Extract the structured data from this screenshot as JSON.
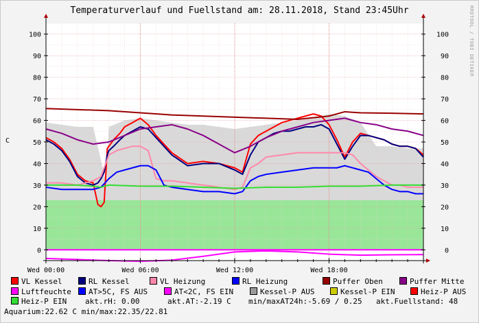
{
  "title": "Temperaturverlauf und Fuellstand am: 28.11.2018, Stand 23:45Uhr",
  "watermark": "RRDTOOL / TOBI OETIKER",
  "chart_data": {
    "type": "line",
    "ylabel": "C",
    "ylim": [
      -5,
      105
    ],
    "yticks": [
      0,
      10,
      20,
      30,
      40,
      50,
      60,
      70,
      80,
      90,
      100
    ],
    "xlim": [
      0,
      24
    ],
    "xticks": [
      {
        "x": 0,
        "label": "Wed 00:00"
      },
      {
        "x": 6,
        "label": "Wed 06:00"
      },
      {
        "x": 12,
        "label": "Wed 12:00"
      },
      {
        "x": 18,
        "label": "Wed 18:00"
      }
    ],
    "grid": true,
    "legend_position": "bottom",
    "series": [
      {
        "name": "VL Kessel",
        "color": "#ff0000",
        "x": [
          0,
          0.5,
          1,
          1.5,
          2,
          2.5,
          3,
          3.3,
          3.5,
          3.7,
          3.9,
          4,
          4.3,
          4.7,
          5,
          5.5,
          6,
          6.5,
          7,
          7.5,
          8,
          9,
          10,
          11,
          12,
          12.5,
          13,
          13.5,
          14,
          14.5,
          15,
          15.5,
          16,
          16.5,
          17,
          17.5,
          18,
          18.5,
          19,
          19.5,
          20,
          20.5,
          21,
          21.5,
          22,
          22.5,
          23,
          23.5,
          24
        ],
        "y": [
          52,
          50,
          47,
          42,
          35,
          32,
          31,
          21,
          20,
          22,
          47,
          48,
          51,
          54,
          57,
          59,
          61,
          58,
          53,
          49,
          45,
          40,
          41,
          40,
          38,
          36,
          49,
          53,
          55,
          57,
          59,
          60,
          61,
          62,
          63,
          62,
          58,
          51,
          43,
          50,
          54,
          53,
          52,
          51,
          49,
          48,
          48,
          47,
          44
        ]
      },
      {
        "name": "RL Kessel",
        "color": "#000080",
        "x": [
          0,
          0.5,
          1,
          1.5,
          2,
          2.5,
          3,
          3.3,
          3.5,
          3.7,
          3.9,
          4,
          4.3,
          4.7,
          5,
          5.5,
          6,
          6.5,
          7,
          7.5,
          8,
          9,
          10,
          11,
          12,
          12.5,
          13,
          13.5,
          14,
          14.5,
          15,
          15.5,
          16,
          16.5,
          17,
          17.5,
          18,
          18.5,
          19,
          19.5,
          20,
          20.5,
          21,
          21.5,
          22,
          22.5,
          23,
          23.5,
          24
        ],
        "y": [
          51,
          49,
          46,
          41,
          34,
          31,
          30,
          31,
          33,
          36,
          44,
          46,
          48,
          51,
          53,
          55,
          57,
          56,
          52,
          48,
          44,
          39,
          40,
          40,
          37,
          35,
          44,
          50,
          52,
          54,
          55,
          55,
          56,
          57,
          57,
          58,
          56,
          49,
          42,
          48,
          53,
          53,
          52,
          51,
          49,
          48,
          48,
          47,
          43
        ]
      },
      {
        "name": "VL Heizung",
        "color": "#ff88aa",
        "x": [
          0,
          1,
          2,
          3,
          3.5,
          4,
          4.5,
          5,
          5.5,
          6,
          6.5,
          7,
          7.5,
          8,
          9,
          10,
          11,
          12,
          12.5,
          13,
          13.5,
          14,
          15,
          16,
          17,
          18,
          18.5,
          19,
          19.5,
          20,
          20.5,
          21,
          21.5,
          22,
          22.5,
          23,
          23.5,
          24
        ],
        "y": [
          31,
          31,
          30,
          32,
          34,
          44,
          46,
          47,
          48,
          48,
          46,
          33,
          32,
          32,
          31,
          30,
          29,
          28,
          29,
          38,
          40,
          43,
          44,
          45,
          45,
          45,
          45,
          45,
          44,
          40,
          37,
          34,
          32,
          30,
          30,
          29,
          29,
          29
        ]
      },
      {
        "name": "RL Heizung",
        "color": "#0000ff",
        "x": [
          0,
          1,
          2,
          3,
          3.5,
          4,
          4.5,
          5,
          5.5,
          6,
          6.5,
          7,
          7.5,
          8,
          9,
          10,
          11,
          12,
          12.5,
          13,
          13.5,
          14,
          15,
          16,
          17,
          18,
          18.5,
          19,
          19.5,
          20,
          20.5,
          21,
          21.5,
          22,
          22.5,
          23,
          23.5,
          24
        ],
        "y": [
          29,
          28,
          28,
          28,
          29,
          33,
          36,
          37,
          38,
          39,
          39,
          37,
          30,
          29,
          28,
          27,
          27,
          26,
          27,
          32,
          34,
          35,
          36,
          37,
          38,
          38,
          38,
          39,
          38,
          37,
          36,
          33,
          30,
          28,
          27,
          27,
          26,
          26
        ]
      },
      {
        "name": "Puffer Oben",
        "color": "#990000",
        "x": [
          0,
          2,
          4,
          6,
          8,
          10,
          12,
          14,
          16,
          18,
          19,
          20,
          22,
          24
        ],
        "y": [
          65.5,
          65,
          64.5,
          63.5,
          62.5,
          62,
          61.5,
          61,
          60.5,
          62,
          64,
          63.5,
          63.3,
          63
        ]
      },
      {
        "name": "Puffer Mitte",
        "color": "#880088",
        "x": [
          0,
          1,
          2,
          3,
          4,
          5,
          6,
          7,
          8,
          9,
          10,
          11,
          12,
          13,
          14,
          15,
          16,
          17,
          18,
          19,
          20,
          21,
          22,
          23,
          24
        ],
        "y": [
          56,
          54,
          51,
          49,
          50,
          53,
          56,
          57,
          58,
          56,
          53,
          49,
          45,
          48,
          52,
          55,
          57,
          59,
          60,
          61,
          59,
          58,
          56,
          55,
          53
        ]
      },
      {
        "name": "Luftfeuchte",
        "color": "#ff00ff",
        "x": [
          0,
          2,
          4,
          6,
          8,
          10,
          12,
          14,
          16,
          18,
          20,
          22,
          24
        ],
        "y": [
          -4,
          -4.5,
          -5,
          -5.3,
          -4.8,
          -3,
          -1,
          -0.5,
          -1,
          -2,
          -2.5,
          -2.3,
          -2.2
        ]
      },
      {
        "name": "AT>5C, FS AUS",
        "color": "#0000ff",
        "x": [],
        "y": []
      },
      {
        "name": "AT<2C, FS EIN",
        "color": "#ff00ff",
        "x": [
          0,
          24
        ],
        "y": [
          0,
          0
        ]
      },
      {
        "name": "Kessel-P AUS",
        "color": "#999999",
        "x": [],
        "y": []
      },
      {
        "name": "Kessel-P EIN",
        "color": "#cccc00",
        "x": [],
        "y": []
      },
      {
        "name": "Heiz-P AUS",
        "color": "#ff0000",
        "x": [],
        "y": []
      },
      {
        "name": "Heiz-P EIN",
        "color": "#33dd33",
        "x": [
          0,
          2,
          3,
          3.5,
          4,
          6,
          8,
          10,
          12,
          14,
          16,
          18,
          20,
          22,
          24
        ],
        "y": [
          30,
          30,
          29.5,
          29,
          30,
          29.5,
          29.5,
          29,
          28.5,
          29,
          29,
          29.5,
          29.5,
          30,
          30
        ]
      }
    ],
    "areas": [
      {
        "name": "Fuellstand",
        "color": "#99e699",
        "x": [
          0,
          24
        ],
        "y": [
          23,
          23
        ]
      },
      {
        "name": "Kessel-P AUS band",
        "color": "#d9d9d9",
        "x": [
          0,
          1,
          2,
          3,
          3.8,
          4,
          5,
          6,
          7,
          8,
          9,
          10,
          11,
          12,
          13,
          14,
          15,
          16,
          17,
          18,
          19,
          20,
          21,
          22,
          23,
          24
        ],
        "y": [
          59,
          58,
          57,
          57,
          32,
          57,
          60,
          61,
          60,
          59,
          58,
          58,
          57,
          56,
          57,
          58,
          59,
          60,
          61,
          63,
          62,
          59,
          48,
          48,
          47,
          47
        ]
      }
    ]
  },
  "legend": {
    "row1": [
      {
        "label": "VL Kessel",
        "color": "#ff0000"
      },
      {
        "label": "RL Kessel",
        "color": "#000080"
      },
      {
        "label": "VL Heizung",
        "color": "#ff88aa"
      },
      {
        "label": "RL Heizung",
        "color": "#0000ff"
      },
      {
        "label": "Puffer Oben",
        "color": "#990000"
      },
      {
        "label": "Puffer Mitte",
        "color": "#880088"
      }
    ],
    "row2": [
      {
        "label": "Luftfeuchte",
        "color": "#ff00ff"
      },
      {
        "label": "AT>5C, FS AUS",
        "color": "#0000ff"
      },
      {
        "label": "AT<2C, FS EIN",
        "color": "#ff00ff"
      },
      {
        "label": "Kessel-P AUS",
        "color": "#999999"
      },
      {
        "label": "Kessel-P EIN",
        "color": "#cccc00"
      },
      {
        "label": "Heiz-P AUS",
        "color": "#ff0000"
      }
    ],
    "row3_item": {
      "label": "Heiz-P EIN",
      "color": "#33dd33"
    }
  },
  "stats": {
    "rh": "akt.rH: 0.00",
    "at": "akt.AT:-2.19 C",
    "minmax_at": "min/maxAT24h:-5.69 / 0.25",
    "fuellstand": "akt.Fuellstand:   48",
    "aquarium": "Aquarium:22.62 C  min/max:22.35/22.81"
  }
}
